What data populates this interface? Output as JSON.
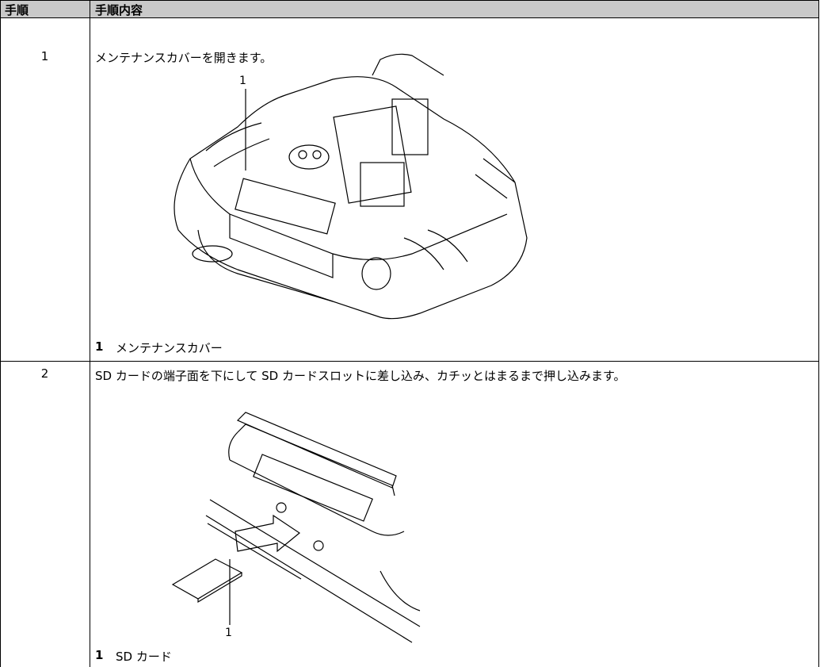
{
  "table": {
    "header": [
      "手順",
      "手順内容"
    ],
    "rows": [
      {
        "step": "1",
        "instruction": "メンテナンスカバーを開きます。",
        "figure": {
          "callout": "1"
        },
        "legend": {
          "number": "1",
          "label": "メンテナンスカバー"
        }
      },
      {
        "step": "2",
        "instruction": "SD カードの端子面を下にして SD カードスロットに差し込み、カチッとはまるまで押し込みます。",
        "figure": {
          "callout": "1"
        },
        "legend": {
          "number": "1",
          "label": "SD カード"
        }
      }
    ]
  }
}
